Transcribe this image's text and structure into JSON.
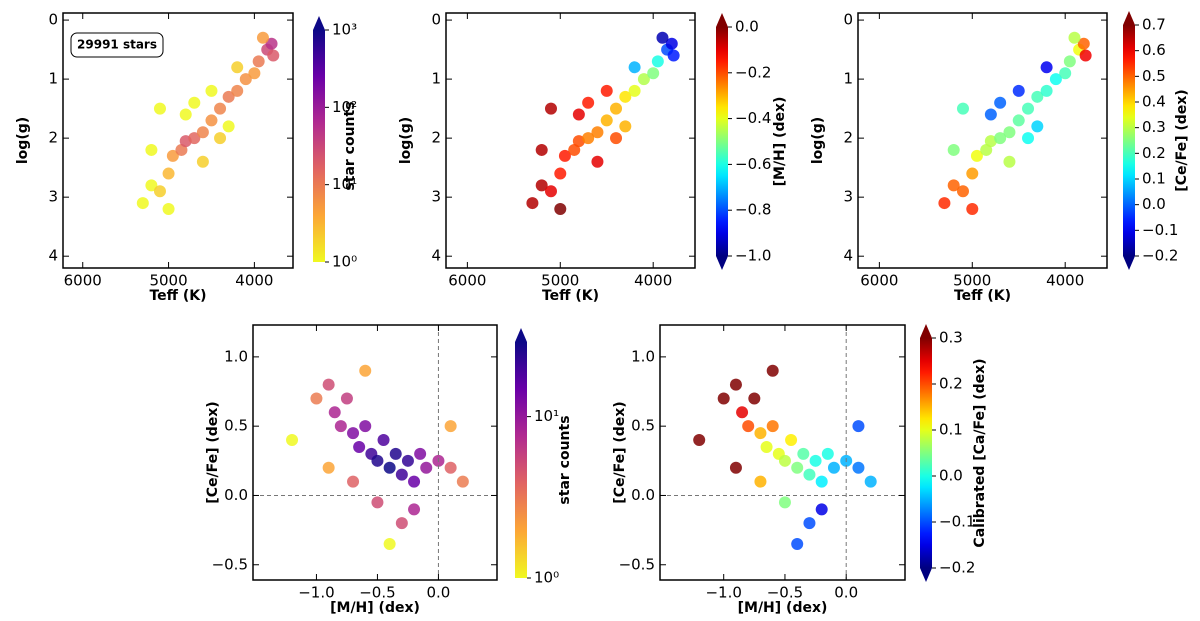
{
  "chart_data": [
    {
      "type": "scatter",
      "xlabel": "Teff (K)",
      "ylabel": "log(g)",
      "xlim": [
        3550,
        6230
      ],
      "xinvert": true,
      "ylim": [
        -0.12,
        4.2
      ],
      "yinvert": true,
      "xticks": [
        6000,
        5000,
        4000
      ],
      "yticks": [
        0,
        1,
        2,
        3,
        4
      ],
      "annotation": "29991 stars",
      "points": {
        "x": [
          5300,
          5200,
          5100,
          5000,
          4950,
          4850,
          4800,
          4700,
          4600,
          4500,
          4400,
          4300,
          4200,
          4100,
          4000,
          3950,
          3850,
          3800,
          3780,
          3900,
          4800,
          4500,
          5200,
          4600,
          4300,
          5100,
          4200,
          4700,
          5000,
          4400
        ],
        "y": [
          3.1,
          2.8,
          2.9,
          2.6,
          2.3,
          2.2,
          2.05,
          2.0,
          1.9,
          1.7,
          1.5,
          1.3,
          1.2,
          1.0,
          0.9,
          0.7,
          0.5,
          0.4,
          0.6,
          0.3,
          1.6,
          1.2,
          2.2,
          2.4,
          1.8,
          1.5,
          0.8,
          1.4,
          3.2,
          2.0
        ],
        "c": [
          1,
          1,
          2,
          3,
          5,
          10,
          20,
          15,
          8,
          6,
          8,
          10,
          8,
          6,
          5,
          10,
          30,
          50,
          20,
          5,
          1,
          1,
          1,
          2,
          1,
          1,
          2,
          1,
          1,
          2
        ]
      },
      "colorbar": {
        "label": "star counts",
        "colormap": "plasma_r",
        "log": true,
        "clim": [
          1,
          1000
        ],
        "extend": "max",
        "ticks": [
          {
            "value": 1,
            "label": "10⁰"
          },
          {
            "value": 10,
            "label": "10¹"
          },
          {
            "value": 100,
            "label": "10²"
          },
          {
            "value": 1000,
            "label": "10³"
          }
        ]
      }
    },
    {
      "type": "scatter",
      "xlabel": "Teff (K)",
      "ylabel": "log(g)",
      "xlim": [
        3550,
        6230
      ],
      "xinvert": true,
      "ylim": [
        -0.12,
        4.2
      ],
      "yinvert": true,
      "xticks": [
        6000,
        5000,
        4000
      ],
      "yticks": [
        0,
        1,
        2,
        3,
        4
      ],
      "points": {
        "x": [
          5300,
          5200,
          5100,
          5000,
          4950,
          4850,
          4800,
          4700,
          4600,
          4500,
          4400,
          4300,
          4200,
          4100,
          4000,
          3950,
          3850,
          3800,
          3780,
          3900,
          4800,
          4500,
          5200,
          4600,
          4300,
          5100,
          4200,
          4700,
          5000,
          4400
        ],
        "y": [
          3.1,
          2.8,
          2.9,
          2.6,
          2.3,
          2.2,
          2.05,
          2.0,
          1.9,
          1.7,
          1.5,
          1.3,
          1.2,
          1.0,
          0.9,
          0.7,
          0.5,
          0.4,
          0.6,
          0.3,
          1.6,
          1.2,
          2.2,
          2.4,
          1.8,
          1.5,
          0.8,
          1.4,
          3.2,
          2.0
        ],
        "c": [
          -0.05,
          -0.05,
          -0.1,
          -0.15,
          -0.15,
          -0.2,
          -0.2,
          -0.25,
          -0.25,
          -0.3,
          -0.3,
          -0.35,
          -0.4,
          -0.45,
          -0.5,
          -0.6,
          -0.8,
          -0.9,
          -0.85,
          -0.95,
          -0.1,
          -0.15,
          -0.05,
          -0.1,
          -0.3,
          -0.05,
          -0.7,
          -0.15,
          0,
          -0.2
        ]
      },
      "colorbar": {
        "label": "[M/H] (dex)",
        "colormap": "jet",
        "log": false,
        "clim": [
          -1,
          0
        ],
        "extend": "both",
        "ticks": [
          {
            "value": 0,
            "label": "0.0"
          },
          {
            "value": -0.2,
            "label": "−0.2"
          },
          {
            "value": -0.4,
            "label": "−0.4"
          },
          {
            "value": -0.6,
            "label": "−0.6"
          },
          {
            "value": -0.8,
            "label": "−0.8"
          },
          {
            "value": -1,
            "label": "−1.0"
          }
        ]
      }
    },
    {
      "type": "scatter",
      "xlabel": "Teff (K)",
      "ylabel": "log(g)",
      "xlim": [
        3550,
        6230
      ],
      "xinvert": true,
      "ylim": [
        -0.12,
        4.2
      ],
      "yinvert": true,
      "xticks": [
        6000,
        5000,
        4000
      ],
      "yticks": [
        0,
        1,
        2,
        3,
        4
      ],
      "points": {
        "x": [
          5300,
          5200,
          5100,
          5000,
          4950,
          4850,
          4800,
          4700,
          4600,
          4500,
          4400,
          4300,
          4200,
          4100,
          4000,
          3950,
          3850,
          3800,
          3780,
          3900,
          4800,
          4500,
          5200,
          4600,
          4300,
          5100,
          4200,
          4700,
          5000,
          4400
        ],
        "y": [
          3.1,
          2.8,
          2.9,
          2.6,
          2.3,
          2.2,
          2.05,
          2.0,
          1.9,
          1.7,
          1.5,
          1.3,
          1.2,
          1.0,
          0.9,
          0.7,
          0.5,
          0.4,
          0.6,
          0.3,
          1.6,
          1.2,
          2.2,
          2.4,
          1.8,
          1.5,
          0.8,
          1.4,
          3.2,
          2.0
        ],
        "c": [
          0.55,
          0.5,
          0.5,
          0.45,
          0.35,
          0.3,
          0.3,
          0.25,
          0.25,
          0.22,
          0.2,
          0.2,
          0.18,
          0.15,
          0.2,
          0.25,
          0.35,
          0.5,
          0.6,
          0.3,
          0.0,
          -0.05,
          0.25,
          0.3,
          0.1,
          0.2,
          -0.1,
          0.0,
          0.55,
          0.15
        ]
      },
      "colorbar": {
        "label": "[Ce/Fe] (dex)",
        "colormap": "jet",
        "log": false,
        "clim": [
          -0.2,
          0.7
        ],
        "extend": "both",
        "ticks": [
          {
            "value": 0.7,
            "label": "0.7"
          },
          {
            "value": 0.6,
            "label": "0.6"
          },
          {
            "value": 0.5,
            "label": "0.5"
          },
          {
            "value": 0.4,
            "label": "0.4"
          },
          {
            "value": 0.3,
            "label": "0.3"
          },
          {
            "value": 0.2,
            "label": "0.2"
          },
          {
            "value": 0.1,
            "label": "0.1"
          },
          {
            "value": 0,
            "label": "0.0"
          },
          {
            "value": -0.1,
            "label": "−0.1"
          },
          {
            "value": -0.2,
            "label": "−0.2"
          }
        ]
      }
    },
    {
      "type": "scatter",
      "xlabel": "[M/H] (dex)",
      "ylabel": "[Ce/Fe] (dex)",
      "xlim": [
        -1.52,
        0.48
      ],
      "ylim": [
        -0.61,
        1.23
      ],
      "xticks": [
        {
          "value": -1,
          "label": "−1.0"
        },
        {
          "value": -0.5,
          "label": "−0.5"
        },
        {
          "value": 0,
          "label": "0.0"
        }
      ],
      "yticks": [
        {
          "value": -0.5,
          "label": "−0.5"
        },
        {
          "value": 0,
          "label": "0.0"
        },
        {
          "value": 0.5,
          "label": "0.5"
        },
        {
          "value": 1,
          "label": "1.0"
        }
      ],
      "reference_lines": {
        "x": [
          0
        ],
        "y": [
          0
        ]
      },
      "points": {
        "x": [
          -1.0,
          -0.9,
          -0.85,
          -0.8,
          -0.75,
          -0.7,
          -0.65,
          -0.6,
          -0.55,
          -0.5,
          -0.45,
          -0.4,
          -0.35,
          -0.3,
          -0.25,
          -0.2,
          -0.2,
          -0.15,
          -0.1,
          0.0,
          0.1,
          0.2,
          -0.3,
          -0.5,
          -0.7,
          -1.2,
          -0.6,
          -0.4,
          0.1,
          -0.9
        ],
        "y": [
          0.7,
          0.8,
          0.6,
          0.5,
          0.7,
          0.45,
          0.35,
          0.5,
          0.3,
          0.25,
          0.4,
          0.2,
          0.3,
          0.15,
          0.25,
          0.1,
          -0.1,
          0.3,
          0.2,
          0.25,
          0.2,
          0.1,
          -0.2,
          -0.05,
          0.1,
          0.4,
          0.9,
          -0.35,
          0.5,
          0.2
        ],
        "c": [
          3,
          5,
          8,
          8,
          6,
          12,
          15,
          12,
          20,
          25,
          18,
          30,
          25,
          20,
          22,
          15,
          8,
          12,
          10,
          8,
          4,
          3,
          5,
          5,
          4,
          1,
          2,
          1,
          2,
          2
        ]
      },
      "colorbar": {
        "label": "star counts",
        "colormap": "plasma_r",
        "log": true,
        "clim": [
          1,
          29
        ],
        "extend": "max",
        "ticks": [
          {
            "value": 1,
            "label": "10⁰"
          },
          {
            "value": 10,
            "label": "10¹"
          }
        ]
      }
    },
    {
      "type": "scatter",
      "xlabel": "[M/H] (dex)",
      "ylabel": "[Ce/Fe] (dex)",
      "xlim": [
        -1.52,
        0.48
      ],
      "ylim": [
        -0.61,
        1.23
      ],
      "xticks": [
        {
          "value": -1,
          "label": "−1.0"
        },
        {
          "value": -0.5,
          "label": "−0.5"
        },
        {
          "value": 0,
          "label": "0.0"
        }
      ],
      "yticks": [
        {
          "value": -0.5,
          "label": "−0.5"
        },
        {
          "value": 0,
          "label": "0.0"
        },
        {
          "value": 0.5,
          "label": "0.5"
        },
        {
          "value": 1,
          "label": "1.0"
        }
      ],
      "reference_lines": {
        "x": [
          0
        ],
        "y": [
          0
        ]
      },
      "points": {
        "x": [
          -1.0,
          -0.9,
          -0.85,
          -0.8,
          -0.75,
          -0.7,
          -0.65,
          -0.6,
          -0.55,
          -0.5,
          -0.45,
          -0.4,
          -0.35,
          -0.3,
          -0.25,
          -0.2,
          -0.2,
          -0.15,
          -0.1,
          0.0,
          0.1,
          0.2,
          -0.3,
          -0.5,
          -0.7,
          -1.2,
          -0.6,
          -0.4,
          0.1,
          -0.9
        ],
        "y": [
          0.7,
          0.8,
          0.6,
          0.5,
          0.7,
          0.45,
          0.35,
          0.5,
          0.3,
          0.25,
          0.4,
          0.2,
          0.3,
          0.15,
          0.25,
          0.1,
          -0.1,
          0.3,
          0.2,
          0.25,
          0.2,
          0.1,
          -0.2,
          -0.05,
          0.1,
          0.4,
          0.9,
          -0.35,
          0.5,
          0.2
        ],
        "c": [
          0.3,
          0.3,
          0.25,
          0.2,
          0.3,
          0.15,
          0.1,
          0.18,
          0.1,
          0.08,
          0.12,
          0.05,
          0.03,
          0.02,
          0.0,
          -0.02,
          -0.15,
          0.0,
          -0.05,
          -0.05,
          -0.08,
          -0.05,
          -0.1,
          0.05,
          0.15,
          0.3,
          0.3,
          -0.1,
          -0.1,
          0.3
        ]
      },
      "colorbar": {
        "label": "Calibrated [Ca/Fe] (dex)",
        "colormap": "jet",
        "log": false,
        "clim": [
          -0.2,
          0.3
        ],
        "extend": "both",
        "ticks": [
          {
            "value": 0.3,
            "label": "0.3"
          },
          {
            "value": 0.2,
            "label": "0.2"
          },
          {
            "value": 0.1,
            "label": "0.1"
          },
          {
            "value": 0,
            "label": "0.0"
          },
          {
            "value": -0.1,
            "label": "−0.1"
          },
          {
            "value": -0.2,
            "label": "−0.2"
          }
        ]
      }
    }
  ]
}
